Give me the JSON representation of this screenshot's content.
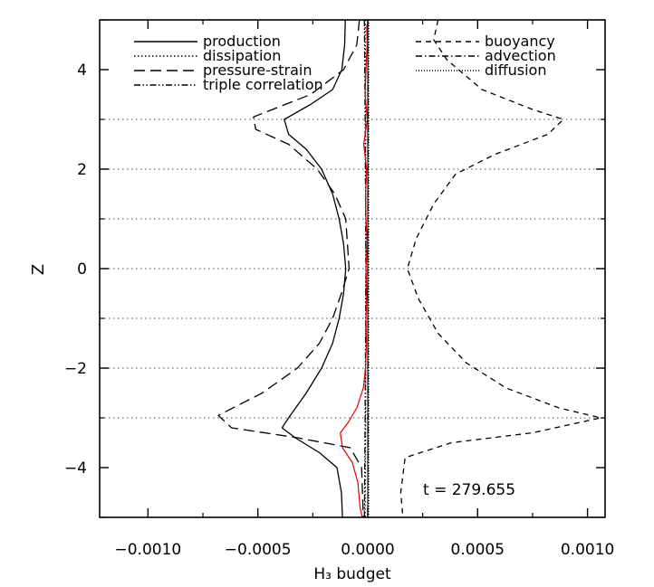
{
  "chart_data": {
    "type": "line",
    "title": "",
    "xlabel": "H₃ budget",
    "ylabel": "Z",
    "xlim": [
      -0.00122,
      0.00108
    ],
    "ylim": [
      -5.0,
      5.0
    ],
    "x_ticks": [
      -0.001,
      -0.0005,
      0.0,
      0.0005,
      0.001
    ],
    "x_tick_labels": [
      "−0.0010",
      "−0.0005",
      "0.0000",
      "0.0005",
      "0.0010"
    ],
    "y_ticks": [
      -4,
      -2,
      0,
      2,
      4
    ],
    "y_tick_labels": [
      "−4",
      "−2",
      "0",
      "2",
      "4"
    ],
    "reference_lines_z": [
      -3,
      -2,
      -1,
      0,
      1,
      2,
      3
    ],
    "annotation": "t = 279.655",
    "legend_placement": "top (two columns)",
    "series": [
      {
        "name": "production",
        "style": "solid",
        "color": "#000000",
        "points": [
          [
            -0.000102,
            5.0
          ],
          [
            -0.000105,
            4.5
          ],
          [
            -0.000118,
            4.0
          ],
          [
            -0.00016,
            3.6
          ],
          [
            -0.00026,
            3.3
          ],
          [
            -0.00038,
            3.0
          ],
          [
            -0.00036,
            2.7
          ],
          [
            -0.00028,
            2.4
          ],
          [
            -0.00021,
            2.0
          ],
          [
            -0.00016,
            1.5
          ],
          [
            -0.00013,
            1.0
          ],
          [
            -0.00011,
            0.5
          ],
          [
            -0.0001,
            0.0
          ],
          [
            -0.00011,
            -0.5
          ],
          [
            -0.00013,
            -1.0
          ],
          [
            -0.00016,
            -1.5
          ],
          [
            -0.00021,
            -2.0
          ],
          [
            -0.00028,
            -2.5
          ],
          [
            -0.00036,
            -3.0
          ],
          [
            -0.00039,
            -3.2
          ],
          [
            -0.00033,
            -3.4
          ],
          [
            -0.00022,
            -3.7
          ],
          [
            -0.00014,
            -4.0
          ],
          [
            -0.00012,
            -4.5
          ],
          [
            -0.000115,
            -5.0
          ]
        ]
      },
      {
        "name": "dissipation",
        "style": "dotted",
        "color": "#000000",
        "points": [
          [
            -1.2e-05,
            5.0
          ],
          [
            -1e-05,
            3.0
          ],
          [
            -8e-06,
            0.0
          ],
          [
            -1e-05,
            -3.0
          ],
          [
            -1.2e-05,
            -5.0
          ]
        ]
      },
      {
        "name": "pressure-strain",
        "style": "long-dash",
        "color": "#000000",
        "points": [
          [
            -3.8e-05,
            5.0
          ],
          [
            -5e-05,
            4.5
          ],
          [
            -0.00011,
            4.0
          ],
          [
            -0.00026,
            3.5
          ],
          [
            -0.00052,
            3.05
          ],
          [
            -0.00051,
            2.8
          ],
          [
            -0.00036,
            2.5
          ],
          [
            -0.00023,
            2.0
          ],
          [
            -0.00015,
            1.5
          ],
          [
            -0.0001,
            1.0
          ],
          [
            -8.5e-05,
            0.0
          ],
          [
            -0.00012,
            -0.5
          ],
          [
            -0.00016,
            -1.0
          ],
          [
            -0.00022,
            -1.5
          ],
          [
            -0.00032,
            -2.0
          ],
          [
            -0.00048,
            -2.5
          ],
          [
            -0.00068,
            -2.95
          ],
          [
            -0.00062,
            -3.2
          ],
          [
            -0.00032,
            -3.4
          ],
          [
            -8e-05,
            -3.6
          ],
          [
            -2.8e-05,
            -4.0
          ],
          [
            -2e-05,
            -5.0
          ]
        ]
      },
      {
        "name": "triple correlation",
        "style": "dash-dot-dot",
        "color": "#000000",
        "points": [
          [
            -1.5e-05,
            5.0
          ],
          [
            -1.2e-05,
            3.0
          ],
          [
            -8e-06,
            0.0
          ],
          [
            -1.2e-05,
            -3.0
          ],
          [
            -1.5e-05,
            -5.0
          ]
        ]
      },
      {
        "name": "buoyancy",
        "style": "short-dash",
        "color": "#000000",
        "points": [
          [
            0.00032,
            5.0
          ],
          [
            0.0003,
            4.6
          ],
          [
            0.00036,
            4.2
          ],
          [
            0.00052,
            3.6
          ],
          [
            0.00075,
            3.2
          ],
          [
            0.00089,
            3.0
          ],
          [
            0.00082,
            2.7
          ],
          [
            0.00058,
            2.3
          ],
          [
            0.0004,
            1.9
          ],
          [
            0.0003,
            1.3
          ],
          [
            0.00022,
            0.6
          ],
          [
            0.00018,
            0.0
          ],
          [
            0.00023,
            -0.6
          ],
          [
            0.00032,
            -1.3
          ],
          [
            0.00045,
            -1.9
          ],
          [
            0.00063,
            -2.4
          ],
          [
            0.00087,
            -2.8
          ],
          [
            0.00106,
            -3.0
          ],
          [
            0.00075,
            -3.3
          ],
          [
            0.00038,
            -3.5
          ],
          [
            0.00017,
            -3.8
          ],
          [
            0.00015,
            -4.5
          ],
          [
            0.00016,
            -5.0
          ]
        ]
      },
      {
        "name": "advection",
        "style": "dash-dot",
        "color": "#000000",
        "points": [
          [
            0.0,
            5.0
          ],
          [
            2e-06,
            3.0
          ],
          [
            0.0,
            0.0
          ],
          [
            2e-06,
            -3.0
          ],
          [
            0.0,
            -5.0
          ]
        ]
      },
      {
        "name": "diffusion",
        "style": "dotted-fine",
        "color": "#000000",
        "points": [
          [
            4e-06,
            5.0
          ],
          [
            4e-06,
            -5.0
          ]
        ]
      },
      {
        "name": "",
        "style": "solid",
        "color": "#e00000",
        "points": [
          [
            -5e-06,
            4.9
          ],
          [
            -3e-06,
            4.5
          ],
          [
            -8e-06,
            4.0
          ],
          [
            -1.2e-05,
            3.5
          ],
          [
            -2e-06,
            3.0
          ],
          [
            -1.8e-05,
            2.5
          ],
          [
            -5e-06,
            2.0
          ],
          [
            -1e-05,
            1.5
          ],
          [
            -8e-06,
            1.0
          ],
          [
            -2e-06,
            0.5
          ],
          [
            -8e-06,
            0.0
          ],
          [
            -4e-06,
            -0.5
          ],
          [
            -8e-06,
            -1.0
          ],
          [
            -6e-06,
            -1.5
          ],
          [
            -1e-05,
            -2.0
          ],
          [
            -2e-05,
            -2.4
          ],
          [
            -5e-05,
            -2.8
          ],
          [
            -9e-05,
            -3.1
          ],
          [
            -0.000125,
            -3.3
          ],
          [
            -0.000115,
            -3.6
          ],
          [
            -7e-05,
            -3.9
          ],
          [
            -4.5e-05,
            -4.3
          ],
          [
            -3.5e-05,
            -4.8
          ],
          [
            -2.5e-05,
            -5.0
          ]
        ]
      }
    ]
  }
}
